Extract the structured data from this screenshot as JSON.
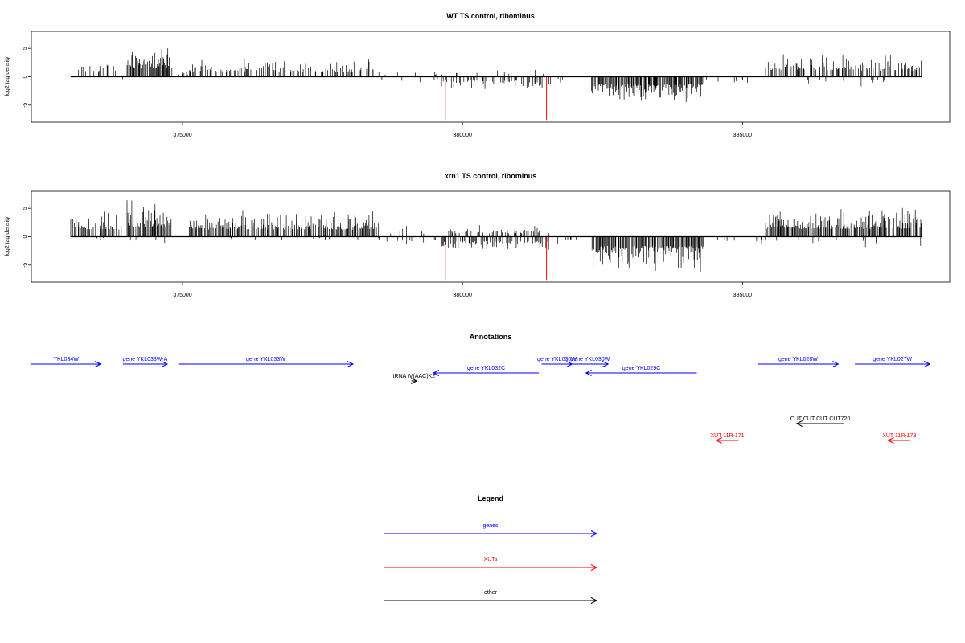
{
  "colors": {
    "axis": "#000000",
    "bar": "#000000",
    "highlight": "#ff0000",
    "genes": "#0000ff",
    "xuts": "#ff0000",
    "other": "#000000"
  },
  "chart_data": [
    {
      "type": "bar",
      "title": "WT TS control, ribominus",
      "ylabel": "log2 tag density",
      "xlabel": "",
      "x_ticks": [
        375000,
        380000,
        385000
      ],
      "y_ticks": [
        -5,
        0,
        5
      ],
      "xlim": [
        372300,
        388700
      ],
      "ylim": [
        -8,
        8
      ],
      "grid": false,
      "highlight_bars": [
        {
          "x": 379700,
          "y": -7.6
        },
        {
          "x": 381500,
          "y": -7.6
        }
      ],
      "segments": [
        {
          "start": 373000,
          "end": 373850,
          "sign": 1,
          "amp": 3.5,
          "density": 0.28
        },
        {
          "start": 373850,
          "end": 374000,
          "sign": -1,
          "amp": 1.0,
          "density": 0.1
        },
        {
          "start": 374000,
          "end": 374800,
          "sign": 1,
          "amp": 5.8,
          "density": 0.9
        },
        {
          "start": 374800,
          "end": 375100,
          "sign": 1,
          "amp": 1.5,
          "density": 0.15
        },
        {
          "start": 375100,
          "end": 377000,
          "sign": 1,
          "amp": 3.5,
          "density": 0.45
        },
        {
          "start": 377000,
          "end": 378500,
          "sign": 1,
          "amp": 3.2,
          "density": 0.4
        },
        {
          "start": 378500,
          "end": 379600,
          "sign": 1,
          "amp": 1.5,
          "density": 0.08
        },
        {
          "start": 378500,
          "end": 379600,
          "sign": -1,
          "amp": 1.5,
          "density": 0.08
        },
        {
          "start": 379600,
          "end": 381600,
          "sign": -1,
          "amp": 2.5,
          "density": 0.4
        },
        {
          "start": 379600,
          "end": 381600,
          "sign": 1,
          "amp": 1.5,
          "density": 0.1
        },
        {
          "start": 381600,
          "end": 382300,
          "sign": -1,
          "amp": 1.2,
          "density": 0.08
        },
        {
          "start": 382300,
          "end": 384300,
          "sign": -1,
          "amp": 5.0,
          "density": 0.9
        },
        {
          "start": 384300,
          "end": 385400,
          "sign": -1,
          "amp": 1.5,
          "density": 0.08
        },
        {
          "start": 385400,
          "end": 388200,
          "sign": 1,
          "amp": 4.2,
          "density": 0.55
        },
        {
          "start": 385400,
          "end": 388200,
          "sign": -1,
          "amp": 2.0,
          "density": 0.06
        }
      ]
    },
    {
      "type": "bar",
      "title": "xrn1 TS control, ribominus",
      "ylabel": "log2 tag density",
      "xlabel": "",
      "x_ticks": [
        375000,
        380000,
        385000
      ],
      "y_ticks": [
        -5,
        0,
        5
      ],
      "xlim": [
        372300,
        388700
      ],
      "ylim": [
        -8,
        8
      ],
      "grid": false,
      "highlight_bars": [
        {
          "x": 379700,
          "y": -7.6
        },
        {
          "x": 381500,
          "y": -7.6
        }
      ],
      "segments": [
        {
          "start": 373000,
          "end": 373900,
          "sign": 1,
          "amp": 5.0,
          "density": 0.6
        },
        {
          "start": 373000,
          "end": 373900,
          "sign": -1,
          "amp": 0.8,
          "density": 0.05
        },
        {
          "start": 374000,
          "end": 374800,
          "sign": 1,
          "amp": 6.8,
          "density": 0.95
        },
        {
          "start": 374000,
          "end": 374800,
          "sign": -1,
          "amp": 1.5,
          "density": 0.1
        },
        {
          "start": 375100,
          "end": 378500,
          "sign": 1,
          "amp": 5.0,
          "density": 0.75
        },
        {
          "start": 375100,
          "end": 378500,
          "sign": -1,
          "amp": 1.0,
          "density": 0.05
        },
        {
          "start": 378500,
          "end": 379600,
          "sign": 1,
          "amp": 2.0,
          "density": 0.1
        },
        {
          "start": 378500,
          "end": 379600,
          "sign": -1,
          "amp": 1.5,
          "density": 0.1
        },
        {
          "start": 379600,
          "end": 381600,
          "sign": -1,
          "amp": 3.0,
          "density": 0.6
        },
        {
          "start": 379600,
          "end": 381600,
          "sign": 1,
          "amp": 2.2,
          "density": 0.3
        },
        {
          "start": 381600,
          "end": 382300,
          "sign": -1,
          "amp": 1.5,
          "density": 0.1
        },
        {
          "start": 382300,
          "end": 384300,
          "sign": -1,
          "amp": 6.5,
          "density": 0.95
        },
        {
          "start": 384300,
          "end": 385400,
          "sign": -1,
          "amp": 2.0,
          "density": 0.1
        },
        {
          "start": 385400,
          "end": 388200,
          "sign": 1,
          "amp": 5.5,
          "density": 0.85
        },
        {
          "start": 385400,
          "end": 388200,
          "sign": -1,
          "amp": 2.5,
          "density": 0.08
        }
      ]
    }
  ],
  "annotations": {
    "title": "Annotations",
    "items": [
      {
        "label": "YKL034W",
        "kind": "gene",
        "start": 372300,
        "end": 373550,
        "dir": 1,
        "row": 0
      },
      {
        "label": "gene YKL033W-A",
        "kind": "gene",
        "start": 373950,
        "end": 374750,
        "dir": 1,
        "row": 0
      },
      {
        "label": "gene YKL033W",
        "kind": "gene",
        "start": 374950,
        "end": 378100,
        "dir": 1,
        "row": 0
      },
      {
        "label": "gene YKL032C",
        "kind": "gene",
        "start": 379550,
        "end": 381450,
        "dir": -1,
        "row": 1
      },
      {
        "label": "tRNA tV(AAC)K2",
        "kind": "other",
        "start": 379150,
        "end": 379250,
        "dir": 1,
        "row": 2
      },
      {
        "label": "gene YKL030W",
        "kind": "gene",
        "start": 381500,
        "end": 382050,
        "dir": 1,
        "row": 0
      },
      {
        "label": "gene YKL030W",
        "kind": "gene",
        "start": 382050,
        "end": 382700,
        "dir": 1,
        "row": 0
      },
      {
        "label": "gene YKL029C",
        "kind": "gene",
        "start": 382300,
        "end": 384300,
        "dir": -1,
        "row": 1
      },
      {
        "label": "gene YKL028W",
        "kind": "gene",
        "start": 385400,
        "end": 386850,
        "dir": 1,
        "row": 0
      },
      {
        "label": "gene YKL027W",
        "kind": "gene",
        "start": 387150,
        "end": 388500,
        "dir": 1,
        "row": 0
      },
      {
        "label": "CUT CUT CUT CUT720",
        "kind": "other",
        "start": 386100,
        "end": 386950,
        "dir": -1,
        "row": 3
      },
      {
        "label": "XUT 11R-171",
        "kind": "xut",
        "start": 384650,
        "end": 385050,
        "dir": -1,
        "row": 4
      },
      {
        "label": "XUT 11R-173",
        "kind": "xut",
        "start": 387750,
        "end": 388150,
        "dir": -1,
        "row": 4
      }
    ]
  },
  "legend": {
    "title": "Legend",
    "items": [
      {
        "label": "genes",
        "kind": "gene"
      },
      {
        "label": "XUTs",
        "kind": "xut"
      },
      {
        "label": "other",
        "kind": "other"
      }
    ]
  }
}
